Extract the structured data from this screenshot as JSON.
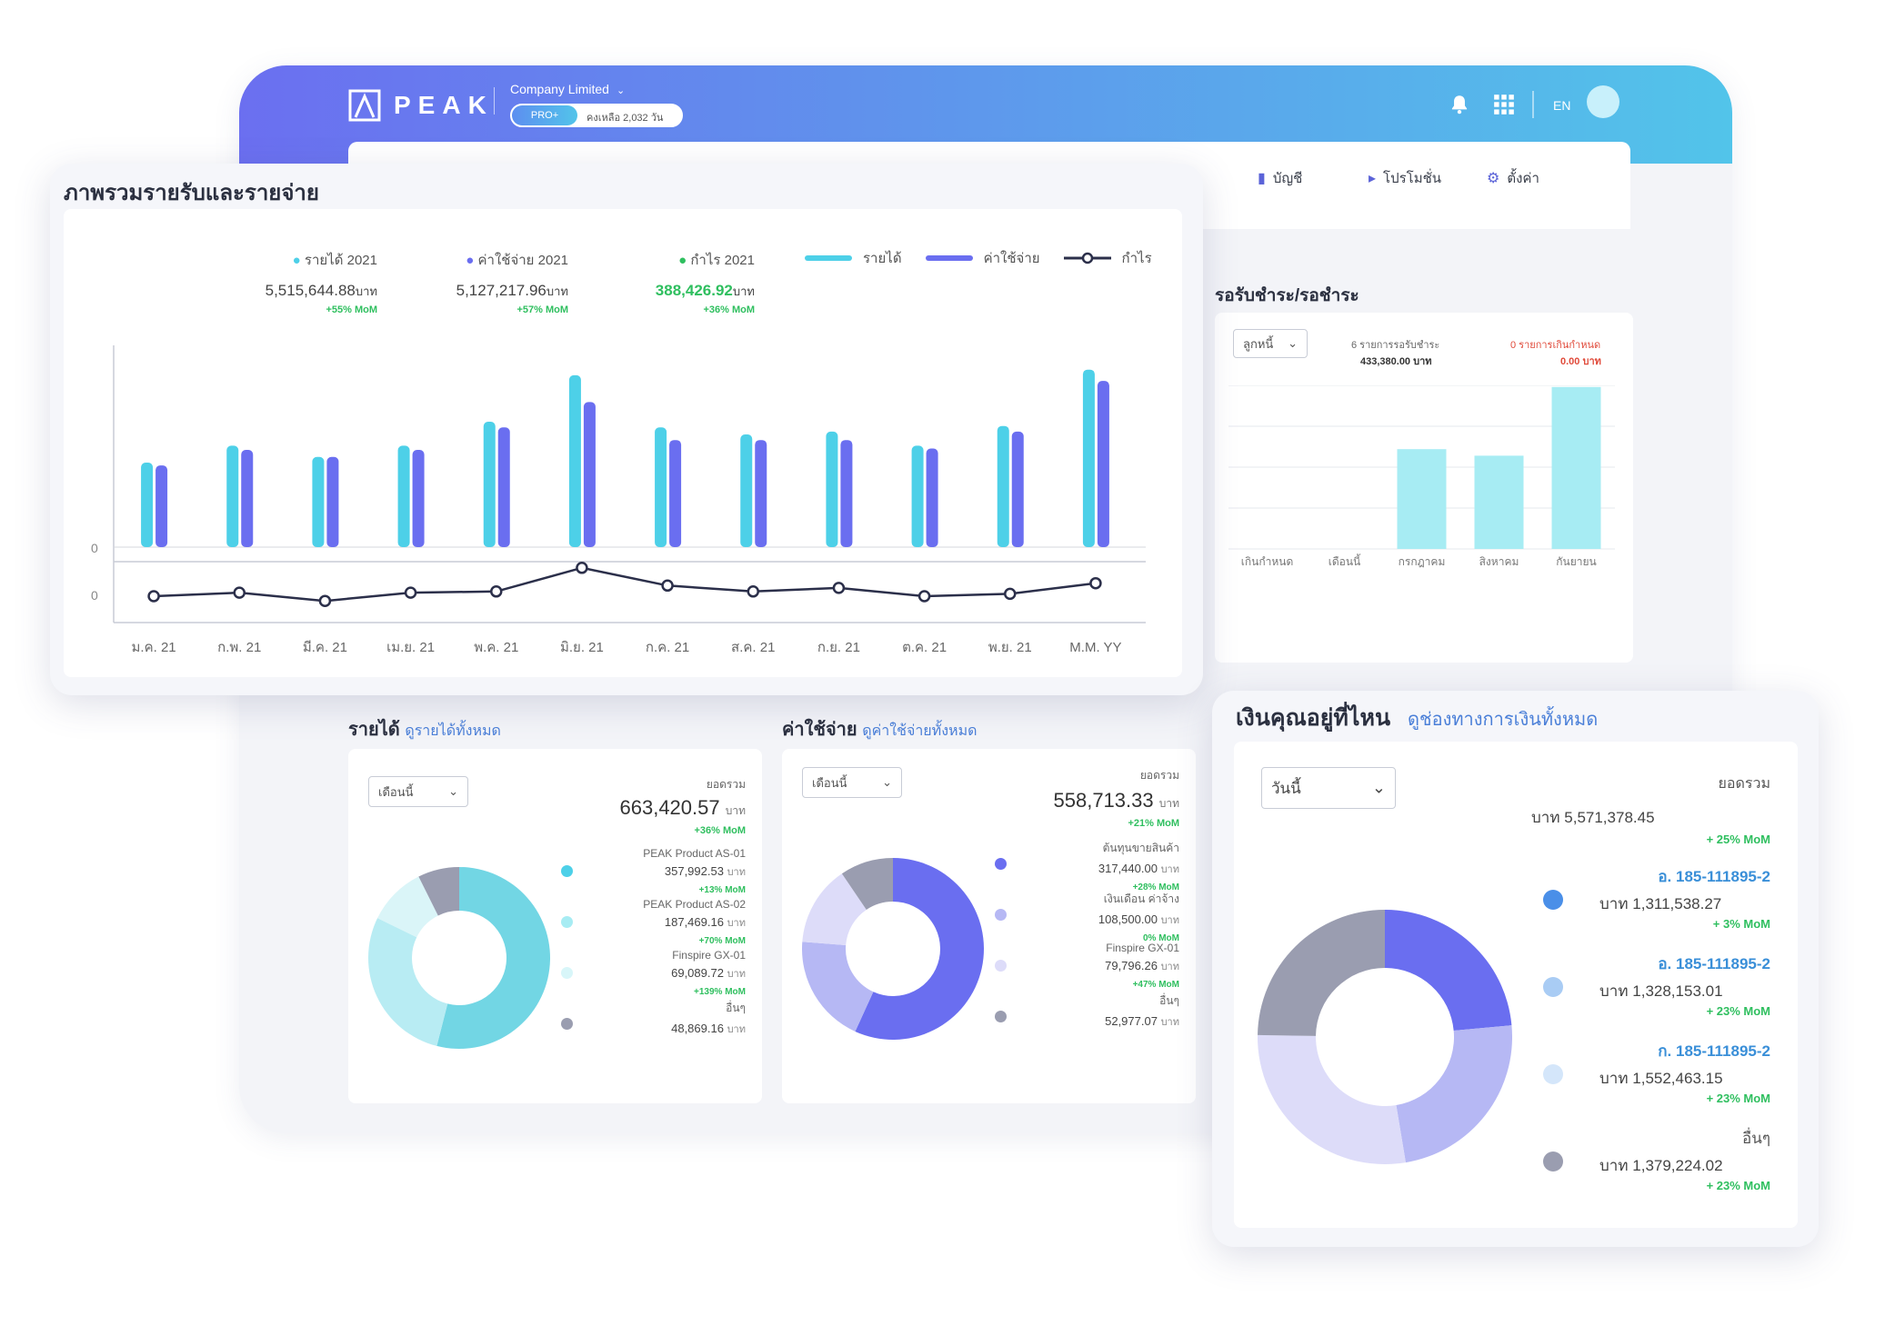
{
  "header": {
    "logo_text": "PEAK",
    "company": "Company Limited",
    "plan_badge": "PRO+",
    "plan_remaining": "คงเหลือ 2,032 วัน",
    "lang": "EN"
  },
  "nav": {
    "items": [
      {
        "label": "บัญชี",
        "icon": "book-icon"
      },
      {
        "label": "โปรโมชั่น",
        "icon": "megaphone-icon"
      },
      {
        "label": "ตั้งค่า",
        "icon": "gear-icon"
      }
    ]
  },
  "overview": {
    "title": "ภาพรวมรายรับและรายจ่าย",
    "stats": [
      {
        "label": "รายได้ 2021",
        "value": "5,515,644.88",
        "unit": "บาท",
        "mom": "+55% MoM",
        "color": "#4dd0e8"
      },
      {
        "label": "ค่าใช้จ่าย 2021",
        "value": "5,127,217.96",
        "unit": "บาท",
        "mom": "+57% MoM",
        "color": "#6a6ef0"
      },
      {
        "label": "กำไร 2021",
        "value": "388,426.92",
        "unit": "บาท",
        "mom": "+36% MoM",
        "color": "#2fbf5f"
      }
    ],
    "legend": {
      "income": "รายได้",
      "expense": "ค่าใช้จ่าย",
      "profit": "กำไร"
    },
    "axis_zero_top": "0",
    "axis_zero_bottom": "0"
  },
  "chart_data": [
    {
      "type": "bar",
      "categories": [
        "ม.ค. 21",
        "ก.พ. 21",
        "มี.ค. 21",
        "เม.ย. 21",
        "พ.ค. 21",
        "มิ.ย. 21",
        "ก.ค. 21",
        "ส.ค. 21",
        "ก.ย. 21",
        "ต.ค. 21",
        "พ.ย. 21",
        "M.M. YY"
      ],
      "series": [
        {
          "name": "รายได้",
          "color": "#4dd0e8",
          "values": [
            60,
            72,
            64,
            72,
            89,
            122,
            85,
            80,
            82,
            72,
            86,
            126
          ]
        },
        {
          "name": "ค่าใช้จ่าย",
          "color": "#6a6ef0",
          "values": [
            58,
            69,
            64,
            69,
            85,
            103,
            76,
            76,
            76,
            70,
            82,
            118
          ]
        },
        {
          "name": "กำไร",
          "type": "line",
          "color": "#2b2f4a",
          "values": [
            0,
            3,
            -4,
            3,
            4,
            24,
            9,
            4,
            7,
            0,
            2,
            11
          ]
        }
      ],
      "ylabel": ""
    },
    {
      "type": "bar",
      "title": "รอรับชำระ/รอชำระ",
      "categories": [
        "เกินกำหนด",
        "เดือนนี้",
        "กรกฎาคม",
        "สิงหาคม",
        "กันยายน"
      ],
      "values": [
        0,
        0,
        61,
        57,
        99
      ],
      "color": "#a7ecf3",
      "ylim": [
        0,
        100
      ]
    },
    {
      "type": "pie",
      "title": "รายได้",
      "labels": [
        "PEAK Product AS-01",
        "PEAK Product AS-02",
        "Finspire GX-01",
        "อื่นๆ"
      ],
      "values": [
        357992.53,
        187469.16,
        69089.72,
        48869.16
      ],
      "colors": [
        "#72d6e4",
        "#b8ecf3",
        "#daf5f8",
        "#9a9db0"
      ]
    },
    {
      "type": "pie",
      "title": "ค่าใช้จ่าย",
      "labels": [
        "ต้นทุนขายสินค้า",
        "เงินเดือน ค่าจ้าง",
        "Finspire GX-01",
        "อื่นๆ"
      ],
      "values": [
        317440.0,
        108500.0,
        79796.26,
        52977.07
      ],
      "colors": [
        "#6a6ef0",
        "#b6b8f4",
        "#dddcf9",
        "#9a9db0"
      ]
    },
    {
      "type": "pie",
      "title": "เงินคุณอยู่ที่ไหน",
      "labels": [
        "อ. 185-111895-2",
        "อ. 185-111895-2",
        "ก. 185-111895-2",
        "อื่นๆ"
      ],
      "values": [
        1311538.27,
        1328153.01,
        1552463.15,
        1379224.02
      ],
      "colors": [
        "#6a6ef0",
        "#b6b8f4",
        "#dddcf9",
        "#9a9db0"
      ]
    }
  ],
  "receivables": {
    "title": "รอรับชำระ/รอชำระ",
    "dropdown": "ลูกหนี้",
    "pending_label": "6 รายการรอรับชำระ",
    "pending_value": "433,380.00 บาท",
    "overdue_label": "0 รายการเกินกำหนด",
    "overdue_value": "0.00 บาท"
  },
  "income": {
    "title": "รายได้",
    "link": "ดูรายได้ทั้งหมด",
    "dropdown": "เดือนนี้",
    "total_label": "ยอดรวม",
    "total_value": "663,420.57",
    "unit": "บาท",
    "total_mom": "+36% MoM",
    "items": [
      {
        "name": "PEAK Product AS-01",
        "value": "357,992.53",
        "mom": "+13% MoM",
        "color": "#4dd0e8"
      },
      {
        "name": "PEAK Product AS-02",
        "value": "187,469.16",
        "mom": "+70% MoM",
        "color": "#a7ecf3"
      },
      {
        "name": "Finspire GX-01",
        "value": "69,089.72",
        "mom": "+139% MoM",
        "color": "#d8f6f9"
      },
      {
        "name": "อื่นๆ",
        "value": "48,869.16",
        "mom": "",
        "color": "#9a9db0"
      }
    ]
  },
  "expense": {
    "title": "ค่าใช้จ่าย",
    "link": "ดูค่าใช้จ่ายทั้งหมด",
    "dropdown": "เดือนนี้",
    "total_label": "ยอดรวม",
    "total_value": "558,713.33",
    "unit": "บาท",
    "total_mom": "+21% MoM",
    "items": [
      {
        "name": "ต้นทุนขายสินค้า",
        "value": "317,440.00",
        "mom": "+28% MoM",
        "color": "#6a6ef0"
      },
      {
        "name": "เงินเดือน ค่าจ้าง",
        "value": "108,500.00",
        "mom": "0% MoM",
        "color": "#b6b8f4"
      },
      {
        "name": "Finspire GX-01",
        "value": "79,796.26",
        "mom": "+47% MoM",
        "color": "#dddcf9"
      },
      {
        "name": "อื่นๆ",
        "value": "52,977.07",
        "mom": "",
        "color": "#9a9db0"
      }
    ]
  },
  "money": {
    "title": "เงินคุณอยู่ที่ไหน",
    "link": "ดูช่องทางการเงินทั้งหมด",
    "dropdown": "วันนี้",
    "total_label": "ยอดรวม",
    "total_value": "บาท 5,571,378.45",
    "total_mom": "+ 25% MoM",
    "items": [
      {
        "name": "อ. 185-111895-2",
        "value": "บาท 1,311,538.27",
        "mom": "+ 3% MoM",
        "color": "#4a8fe8"
      },
      {
        "name": "อ. 185-111895-2",
        "value": "บาท 1,328,153.01",
        "mom": "+ 23% MoM",
        "color": "#a9ccf4"
      },
      {
        "name": "ก. 185-111895-2",
        "value": "บาท 1,552,463.15",
        "mom": "+ 23% MoM",
        "color": "#d4e6fa"
      },
      {
        "name": "อื่นๆ",
        "value": "บาท 1,379,224.02",
        "mom": "+ 23% MoM",
        "color": "#9a9db0"
      }
    ]
  }
}
